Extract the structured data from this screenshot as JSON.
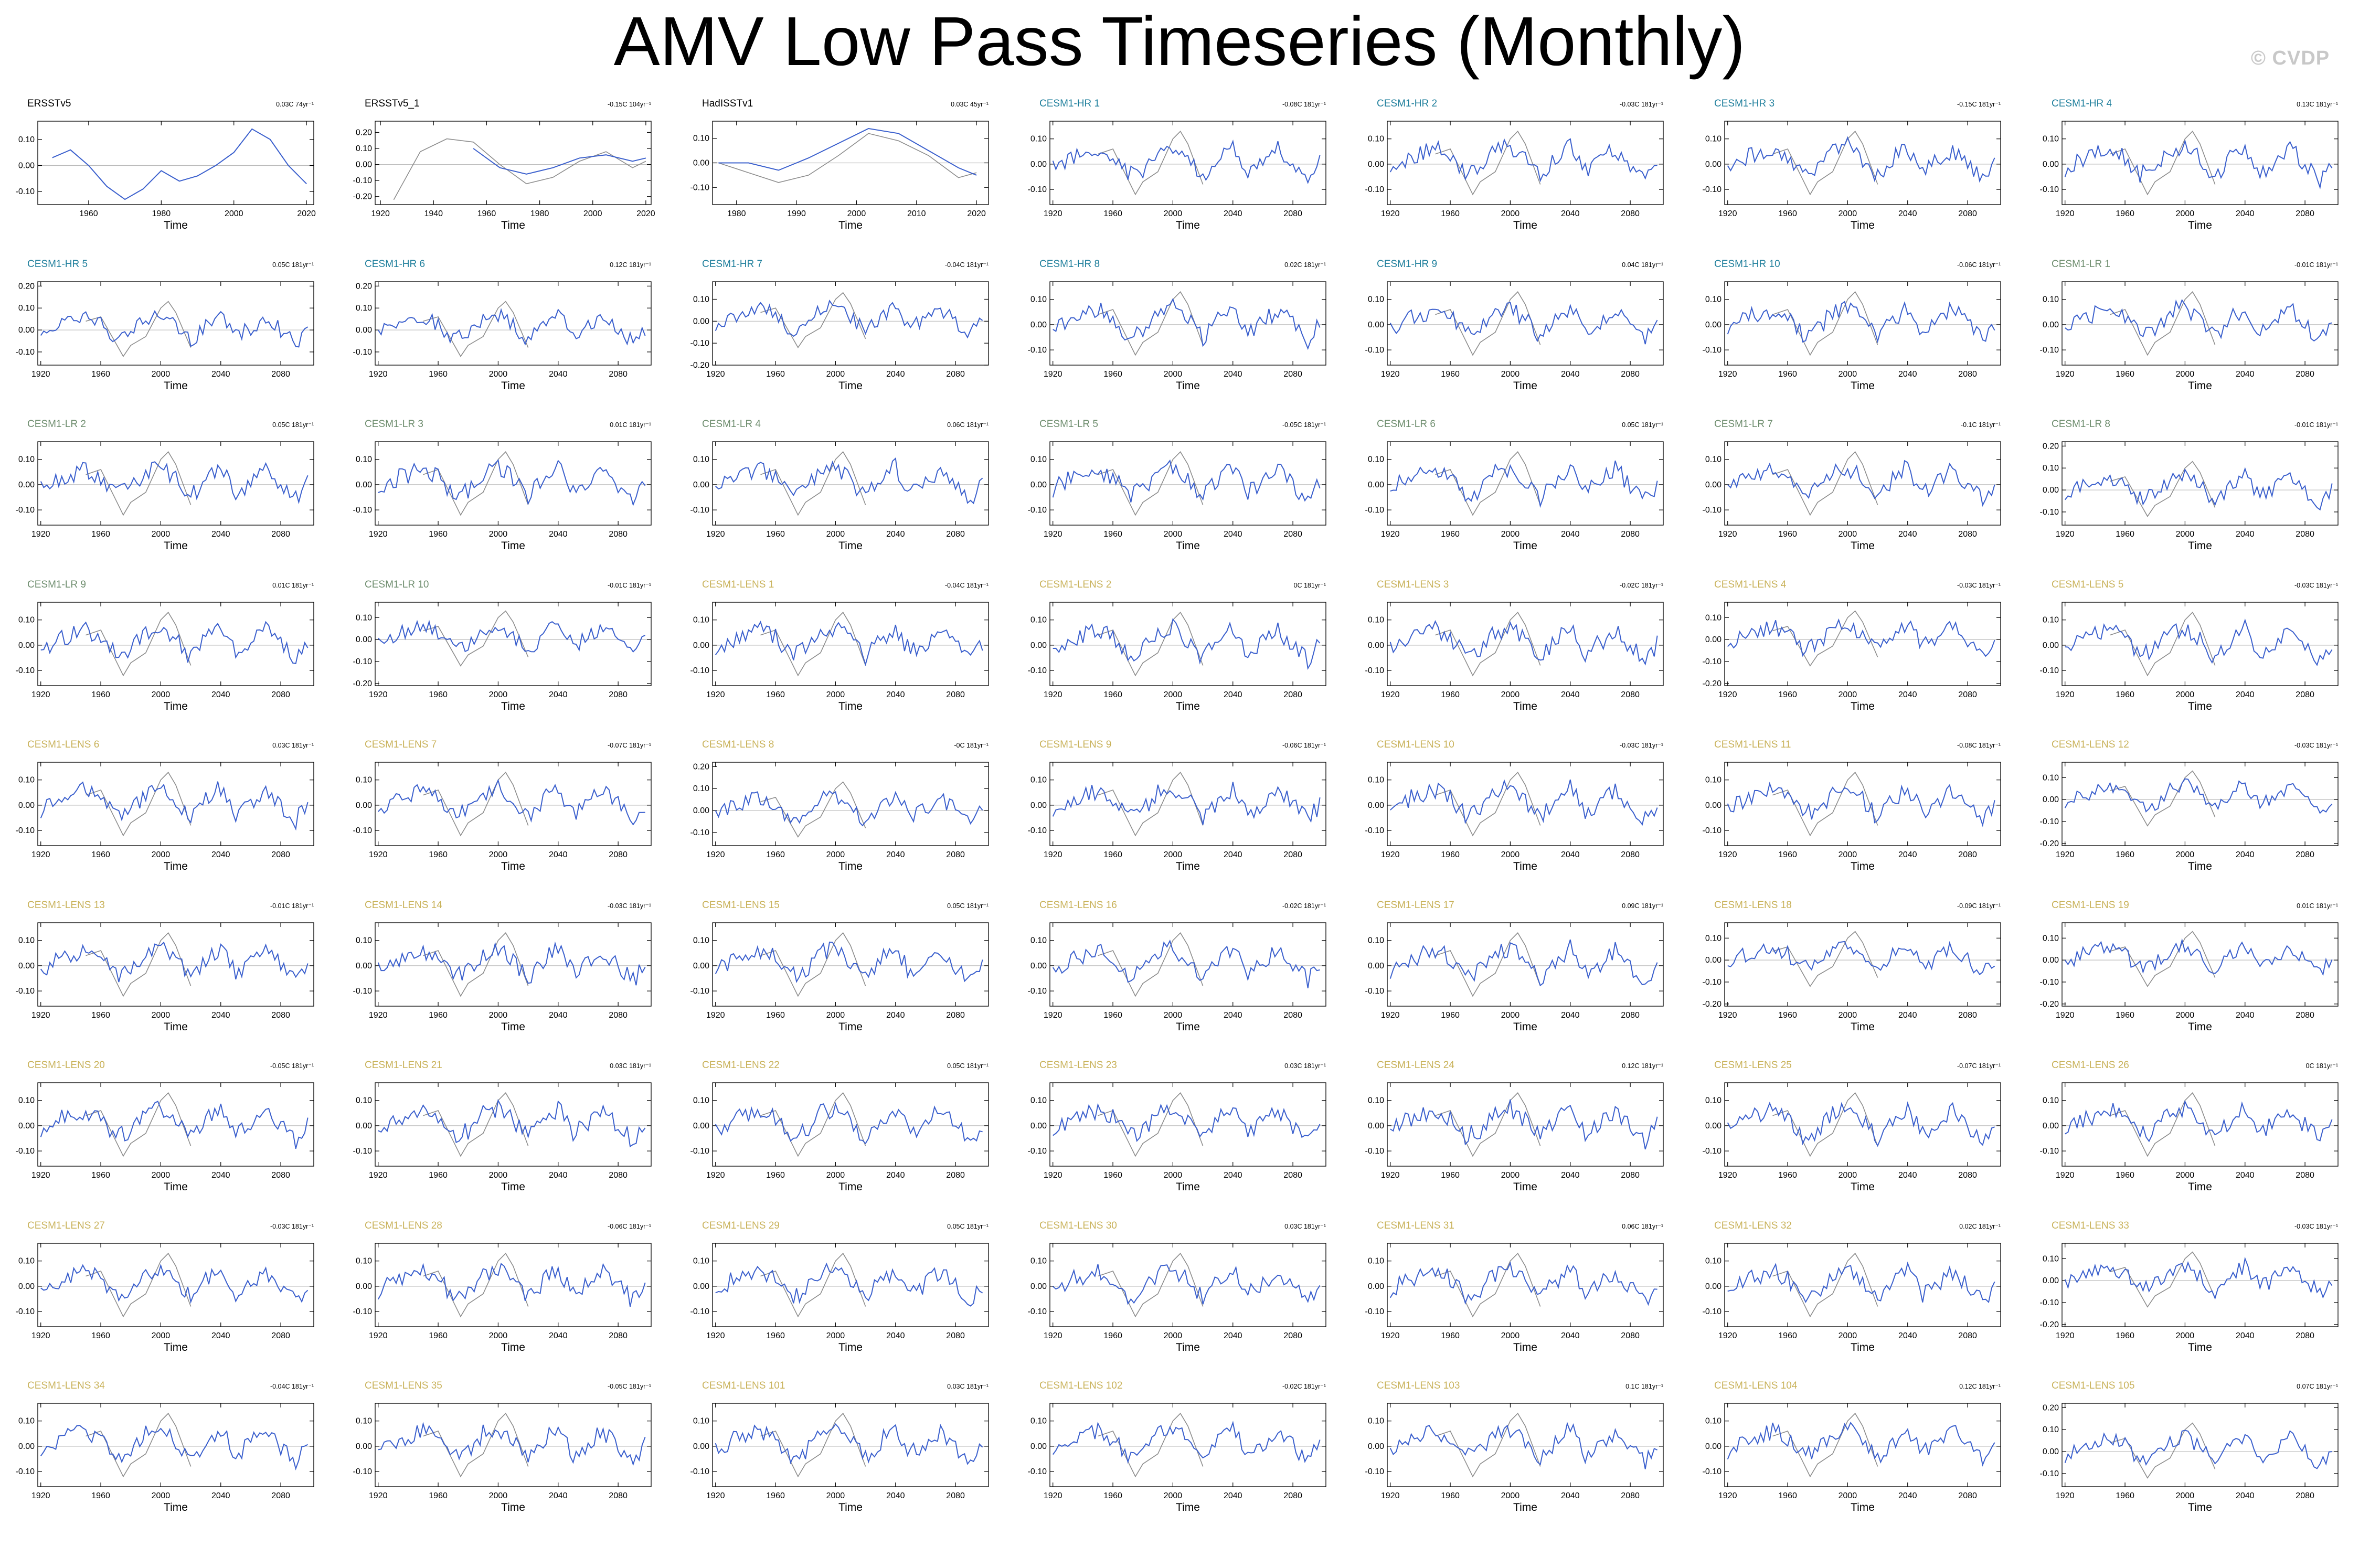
{
  "title": "AMV Low Pass Timeseries (Monthly)",
  "watermark": "© CVDP",
  "colors": {
    "series_main": "#3a5fcd",
    "series_obs": "#8c8c8c",
    "zero_line": "#bbbbbb",
    "label_obs": "#000000",
    "label_cesm_hr": "#1f7f9c",
    "label_cesm_lr": "#6e8d6e",
    "label_cesm_lens": "#c9b25a"
  },
  "chart_data": [
    {
      "type": "line",
      "title": "ERSSTv5",
      "trend": "0.03C 74yr⁻¹",
      "group": "obs",
      "xlim": [
        1946,
        2022
      ],
      "xticks": [
        1960,
        1980,
        2000,
        2020
      ],
      "ylim": [
        -0.15,
        0.17
      ],
      "yticks": [
        0.1,
        0,
        -0.1
      ],
      "xlabel": "Time",
      "series": [
        {
          "x": [
            1950,
            1955,
            1960,
            1965,
            1970,
            1975,
            1980,
            1985,
            1990,
            1995,
            2000,
            2005,
            2010,
            2015,
            2020
          ],
          "y": [
            0.03,
            0.06,
            0.0,
            -0.08,
            -0.13,
            -0.09,
            -0.02,
            -0.06,
            -0.04,
            0.0,
            0.05,
            0.14,
            0.1,
            0.0,
            -0.07
          ]
        }
      ]
    },
    {
      "type": "line",
      "title": "ERSSTv5_1",
      "trend": "-0.15C 104yr⁻¹",
      "group": "obs",
      "xlim": [
        1918,
        2022
      ],
      "xticks": [
        1920,
        1940,
        1960,
        1980,
        2000,
        2020
      ],
      "ylim": [
        -0.25,
        0.27
      ],
      "yticks": [
        0.2,
        0.1,
        0,
        -0.1,
        -0.2
      ],
      "xlabel": "Time",
      "series": [
        {
          "x": [
            1925,
            1935,
            1945,
            1955,
            1965,
            1975,
            1985,
            1995,
            2005,
            2015,
            2020
          ],
          "y": [
            -0.22,
            0.08,
            0.16,
            0.14,
            0.0,
            -0.12,
            -0.08,
            0.02,
            0.08,
            -0.02,
            0.02
          ]
        },
        {
          "x": [
            1955,
            1965,
            1975,
            1985,
            1995,
            2005,
            2015,
            2020
          ],
          "y": [
            0.1,
            -0.02,
            -0.06,
            -0.02,
            0.04,
            0.06,
            0.02,
            0.04
          ]
        }
      ]
    },
    {
      "type": "line",
      "title": "HadISSTv1",
      "trend": "0.03C 45yr⁻¹",
      "group": "obs",
      "xlim": [
        1976,
        2022
      ],
      "xticks": [
        1980,
        1990,
        2000,
        2010,
        2020
      ],
      "ylim": [
        -0.17,
        0.17
      ],
      "yticks": [
        0.1,
        0,
        -0.1
      ],
      "xlabel": "Time",
      "series": [
        {
          "x": [
            1977,
            1982,
            1987,
            1992,
            1997,
            2002,
            2007,
            2012,
            2017,
            2020
          ],
          "y": [
            0.0,
            -0.04,
            -0.08,
            -0.05,
            0.03,
            0.12,
            0.09,
            0.03,
            -0.06,
            -0.04
          ]
        },
        {
          "x": [
            1977,
            1982,
            1987,
            1992,
            1997,
            2002,
            2007,
            2012,
            2017,
            2020
          ],
          "y": [
            0.0,
            0.0,
            -0.03,
            0.02,
            0.08,
            0.14,
            0.12,
            0.05,
            -0.02,
            -0.05
          ]
        }
      ]
    },
    {
      "title": "CESM1-HR 1",
      "trend": "-0.08C 181yr⁻¹",
      "group": "hr"
    },
    {
      "title": "CESM1-HR 2",
      "trend": "-0.03C 181yr⁻¹",
      "group": "hr"
    },
    {
      "title": "CESM1-HR 3",
      "trend": "-0.15C 181yr⁻¹",
      "group": "hr"
    },
    {
      "title": "CESM1-HR 4",
      "trend": "0.13C 181yr⁻¹",
      "group": "hr"
    },
    {
      "title": "CESM1-HR 5",
      "trend": "0.05C 181yr⁻¹",
      "group": "hr",
      "ylim": [
        -0.16,
        0.22
      ],
      "yticks": [
        0.2,
        0.1,
        0,
        -0.1
      ]
    },
    {
      "title": "CESM1-HR 6",
      "trend": "0.12C 181yr⁻¹",
      "group": "hr",
      "ylim": [
        -0.16,
        0.22
      ],
      "yticks": [
        0.2,
        0.1,
        0,
        -0.1
      ]
    },
    {
      "title": "CESM1-HR 7",
      "trend": "-0.04C 181yr⁻¹",
      "group": "hr",
      "ylim": [
        -0.2,
        0.18
      ],
      "yticks": [
        0.1,
        0,
        -0.1,
        -0.2
      ]
    },
    {
      "title": "CESM1-HR 8",
      "trend": "0.02C 181yr⁻¹",
      "group": "hr"
    },
    {
      "title": "CESM1-HR 9",
      "trend": "0.04C 181yr⁻¹",
      "group": "hr"
    },
    {
      "title": "CESM1-HR 10",
      "trend": "-0.06C 181yr⁻¹",
      "group": "hr"
    },
    {
      "title": "CESM1-LR 1",
      "trend": "-0.01C 181yr⁻¹",
      "group": "lr"
    },
    {
      "title": "CESM1-LR 2",
      "trend": "0.05C 181yr⁻¹",
      "group": "lr"
    },
    {
      "title": "CESM1-LR 3",
      "trend": "0.01C 181yr⁻¹",
      "group": "lr"
    },
    {
      "title": "CESM1-LR 4",
      "trend": "0.06C 181yr⁻¹",
      "group": "lr"
    },
    {
      "title": "CESM1-LR 5",
      "trend": "-0.05C 181yr⁻¹",
      "group": "lr"
    },
    {
      "title": "CESM1-LR 6",
      "trend": "0.05C 181yr⁻¹",
      "group": "lr"
    },
    {
      "title": "CESM1-LR 7",
      "trend": "-0.1C 181yr⁻¹",
      "group": "lr"
    },
    {
      "title": "CESM1-LR 8",
      "trend": "-0.01C 181yr⁻¹",
      "group": "lr",
      "ylim": [
        -0.16,
        0.22
      ],
      "yticks": [
        0.2,
        0.1,
        0,
        -0.1
      ]
    },
    {
      "title": "CESM1-LR 9",
      "trend": "0.01C 181yr⁻¹",
      "group": "lr"
    },
    {
      "title": "CESM1-LR 10",
      "trend": "-0.01C 181yr⁻¹",
      "group": "lr",
      "ylim": [
        -0.21,
        0.17
      ],
      "yticks": [
        0.1,
        0,
        -0.1,
        -0.2
      ]
    },
    {
      "title": "CESM1-LENS 1",
      "trend": "-0.04C 181yr⁻¹",
      "group": "lens"
    },
    {
      "title": "CESM1-LENS 2",
      "trend": "0C 181yr⁻¹",
      "group": "lens"
    },
    {
      "title": "CESM1-LENS 3",
      "trend": "-0.02C 181yr⁻¹",
      "group": "lens"
    },
    {
      "title": "CESM1-LENS 4",
      "trend": "-0.03C 181yr⁻¹",
      "group": "lens",
      "ylim": [
        -0.21,
        0.17
      ],
      "yticks": [
        0.1,
        0,
        -0.1,
        -0.2
      ]
    },
    {
      "title": "CESM1-LENS 5",
      "trend": "-0.03C 181yr⁻¹",
      "group": "lens"
    },
    {
      "title": "CESM1-LENS 6",
      "trend": "0.03C 181yr⁻¹",
      "group": "lens"
    },
    {
      "title": "CESM1-LENS 7",
      "trend": "-0.07C 181yr⁻¹",
      "group": "lens"
    },
    {
      "title": "CESM1-LENS 8",
      "trend": "-0C 181yr⁻¹",
      "group": "lens",
      "ylim": [
        -0.16,
        0.22
      ],
      "yticks": [
        0.2,
        0.1,
        0,
        -0.1
      ]
    },
    {
      "title": "CESM1-LENS 9",
      "trend": "-0.06C 181yr⁻¹",
      "group": "lens"
    },
    {
      "title": "CESM1-LENS 10",
      "trend": "-0.03C 181yr⁻¹",
      "group": "lens"
    },
    {
      "title": "CESM1-LENS 11",
      "trend": "-0.08C 181yr⁻¹",
      "group": "lens"
    },
    {
      "title": "CESM1-LENS 12",
      "trend": "-0.03C 181yr⁻¹",
      "group": "lens",
      "ylim": [
        -0.21,
        0.17
      ],
      "yticks": [
        0.1,
        0,
        -0.1,
        -0.2
      ]
    },
    {
      "title": "CESM1-LENS 13",
      "trend": "-0.01C 181yr⁻¹",
      "group": "lens"
    },
    {
      "title": "CESM1-LENS 14",
      "trend": "-0.03C 181yr⁻¹",
      "group": "lens"
    },
    {
      "title": "CESM1-LENS 15",
      "trend": "0.05C 181yr⁻¹",
      "group": "lens"
    },
    {
      "title": "CESM1-LENS 16",
      "trend": "-0.02C 181yr⁻¹",
      "group": "lens"
    },
    {
      "title": "CESM1-LENS 17",
      "trend": "0.09C 181yr⁻¹",
      "group": "lens"
    },
    {
      "title": "CESM1-LENS 18",
      "trend": "-0.09C 181yr⁻¹",
      "group": "lens",
      "ylim": [
        -0.21,
        0.17
      ],
      "yticks": [
        0.1,
        0,
        -0.1,
        -0.2
      ]
    },
    {
      "title": "CESM1-LENS 19",
      "trend": "0.01C 181yr⁻¹",
      "group": "lens",
      "ylim": [
        -0.21,
        0.17
      ],
      "yticks": [
        0.1,
        0,
        -0.1,
        -0.2
      ]
    },
    {
      "title": "CESM1-LENS 20",
      "trend": "-0.05C 181yr⁻¹",
      "group": "lens"
    },
    {
      "title": "CESM1-LENS 21",
      "trend": "0.03C 181yr⁻¹",
      "group": "lens"
    },
    {
      "title": "CESM1-LENS 22",
      "trend": "0.05C 181yr⁻¹",
      "group": "lens"
    },
    {
      "title": "CESM1-LENS 23",
      "trend": "0.03C 181yr⁻¹",
      "group": "lens"
    },
    {
      "title": "CESM1-LENS 24",
      "trend": "0.12C 181yr⁻¹",
      "group": "lens"
    },
    {
      "title": "CESM1-LENS 25",
      "trend": "-0.07C 181yr⁻¹",
      "group": "lens"
    },
    {
      "title": "CESM1-LENS 26",
      "trend": "0C 181yr⁻¹",
      "group": "lens"
    },
    {
      "title": "CESM1-LENS 27",
      "trend": "-0.03C 181yr⁻¹",
      "group": "lens"
    },
    {
      "title": "CESM1-LENS 28",
      "trend": "-0.06C 181yr⁻¹",
      "group": "lens"
    },
    {
      "title": "CESM1-LENS 29",
      "trend": "0.05C 181yr⁻¹",
      "group": "lens"
    },
    {
      "title": "CESM1-LENS 30",
      "trend": "0.03C 181yr⁻¹",
      "group": "lens"
    },
    {
      "title": "CESM1-LENS 31",
      "trend": "0.06C 181yr⁻¹",
      "group": "lens"
    },
    {
      "title": "CESM1-LENS 32",
      "trend": "0.02C 181yr⁻¹",
      "group": "lens"
    },
    {
      "title": "CESM1-LENS 33",
      "trend": "-0.03C 181yr⁻¹",
      "group": "lens",
      "ylim": [
        -0.21,
        0.17
      ],
      "yticks": [
        0.1,
        0,
        -0.1,
        -0.2
      ]
    },
    {
      "title": "CESM1-LENS 34",
      "trend": "-0.04C 181yr⁻¹",
      "group": "lens"
    },
    {
      "title": "CESM1-LENS 35",
      "trend": "-0.05C 181yr⁻¹",
      "group": "lens"
    },
    {
      "title": "CESM1-LENS 101",
      "trend": "0.03C 181yr⁻¹",
      "group": "lens"
    },
    {
      "title": "CESM1-LENS 102",
      "trend": "-0.02C 181yr⁻¹",
      "group": "lens"
    },
    {
      "title": "CESM1-LENS 103",
      "trend": "0.1C 181yr⁻¹",
      "group": "lens"
    },
    {
      "title": "CESM1-LENS 104",
      "trend": "0.12C 181yr⁻¹",
      "group": "lens"
    },
    {
      "title": "CESM1-LENS 105",
      "trend": "0.07C 181yr⁻¹",
      "group": "lens",
      "ylim": [
        -0.16,
        0.22
      ],
      "yticks": [
        0.2,
        0.1,
        0,
        -0.1
      ]
    }
  ],
  "model_panel_defaults": {
    "type": "line",
    "xlim": [
      1918,
      2102
    ],
    "xticks": [
      1920,
      1960,
      2000,
      2040,
      2080
    ],
    "ylim": [
      -0.16,
      0.17
    ],
    "yticks": [
      0.1,
      0,
      -0.1
    ],
    "xlabel": "Time"
  },
  "model_series_template": {
    "x": [
      1920,
      1930,
      1940,
      1950,
      1960,
      1970,
      1980,
      1990,
      2000,
      2010,
      2020,
      2030,
      2040,
      2050,
      2060,
      2070,
      2080,
      2090,
      2100
    ],
    "y": [
      -0.02,
      0.02,
      0.04,
      0.06,
      0.03,
      -0.04,
      -0.02,
      0.05,
      0.07,
      0.02,
      -0.05,
      0.02,
      0.07,
      -0.03,
      0.01,
      0.06,
      0.0,
      -0.06,
      0.02
    ]
  },
  "obs_overlay_template": {
    "x": [
      1950,
      1960,
      1970,
      1975,
      1980,
      1990,
      2000,
      2005,
      2010,
      2020
    ],
    "y": [
      0.04,
      0.06,
      -0.06,
      -0.12,
      -0.07,
      -0.03,
      0.1,
      0.13,
      0.08,
      -0.08
    ]
  }
}
